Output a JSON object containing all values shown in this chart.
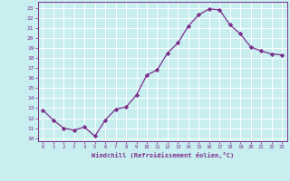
{
  "x": [
    0,
    1,
    2,
    3,
    4,
    5,
    6,
    7,
    8,
    9,
    10,
    11,
    12,
    13,
    14,
    15,
    16,
    17,
    18,
    19,
    20,
    21,
    22,
    23
  ],
  "y": [
    12.8,
    11.8,
    11.0,
    10.8,
    11.1,
    10.2,
    11.8,
    12.9,
    13.1,
    14.3,
    16.3,
    16.8,
    18.5,
    19.5,
    21.2,
    22.3,
    22.9,
    22.8,
    21.3,
    20.4,
    19.1,
    18.7,
    18.4,
    18.3
  ],
  "line_color": "#7b2d8b",
  "marker": "D",
  "marker_size": 2.2,
  "bg_color": "#c8eef0",
  "grid_color": "#ffffff",
  "xlabel": "Windchill (Refroidissement éolien,°C)",
  "yticks": [
    10,
    11,
    12,
    13,
    14,
    15,
    16,
    17,
    18,
    19,
    20,
    21,
    22,
    23
  ],
  "xlim": [
    -0.5,
    23.5
  ],
  "ylim": [
    9.7,
    23.6
  ]
}
